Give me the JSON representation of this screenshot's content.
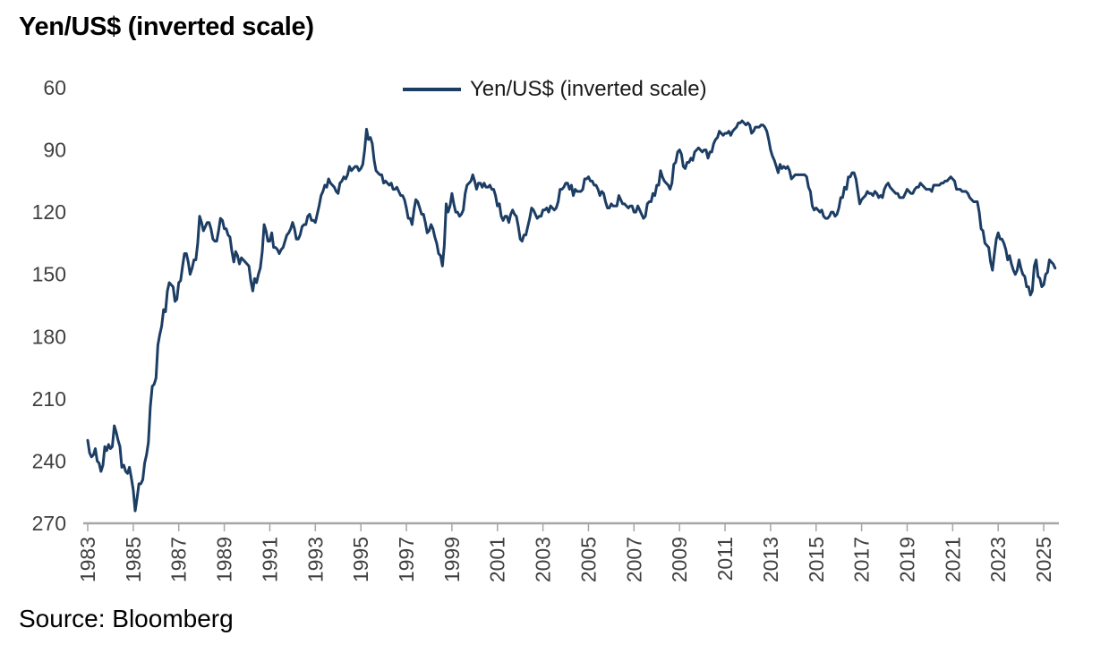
{
  "page": {
    "title": "Yen/US$ (inverted scale)"
  },
  "legend": {
    "label": "Yen/US$ (inverted scale)"
  },
  "footer": {
    "source": "Source: Bloomberg"
  },
  "chart_data": {
    "type": "line",
    "title": "Yen/US$ (inverted scale)",
    "xlabel": "",
    "ylabel": "",
    "grid": false,
    "legend_position": "top-center",
    "y_axis": {
      "inverted": true,
      "min": 60,
      "max": 270,
      "ticks": [
        60,
        90,
        120,
        150,
        180,
        210,
        240,
        270
      ]
    },
    "x_axis": {
      "unit": "year",
      "ticks": [
        1983,
        1985,
        1987,
        1989,
        1991,
        1993,
        1995,
        1997,
        1999,
        2001,
        2003,
        2005,
        2007,
        2009,
        2011,
        2013,
        2015,
        2017,
        2019,
        2021,
        2023,
        2025
      ]
    },
    "colors": {
      "line": "#1C3D64",
      "axis": "#A6A6A6",
      "tick_label": "#404040"
    },
    "series": [
      {
        "name": "Yen/US$ (inverted scale)",
        "x_start": 1983.0,
        "x_step_years": 0.08333,
        "frequency": "monthly",
        "values": [
          230,
          236,
          238,
          237,
          234,
          240,
          241,
          245,
          242,
          233,
          235,
          232,
          234,
          233,
          223,
          226,
          230,
          233,
          243,
          242,
          245,
          246,
          243,
          248,
          254,
          264,
          258,
          251,
          251,
          249,
          241,
          237,
          231,
          214,
          204,
          203,
          200,
          184,
          179,
          175,
          167,
          168,
          158,
          154,
          155,
          156,
          163,
          162,
          154,
          153,
          146,
          140,
          140,
          144,
          150,
          147,
          143,
          143,
          135,
          122,
          125,
          129,
          127,
          125,
          125,
          128,
          133,
          134,
          134,
          129,
          123,
          124,
          128,
          128,
          131,
          132,
          139,
          144,
          139,
          141,
          145,
          142,
          143,
          144,
          145,
          146,
          153,
          158,
          152,
          154,
          150,
          147,
          139,
          126,
          129,
          134,
          134,
          130,
          137,
          137,
          138,
          140,
          138,
          137,
          134,
          131,
          130,
          128,
          125,
          128,
          133,
          133,
          131,
          127,
          126,
          126,
          122,
          121,
          124,
          124,
          125,
          121,
          117,
          112,
          110,
          107,
          108,
          104,
          106,
          107,
          108,
          110,
          111,
          106,
          105,
          103,
          104,
          102,
          98,
          100,
          99,
          98,
          98,
          100,
          99,
          97,
          90,
          80,
          85,
          84,
          87,
          95,
          100,
          101,
          102,
          102,
          106,
          105,
          106,
          107,
          106,
          109,
          109,
          108,
          110,
          112,
          112,
          114,
          118,
          123,
          123,
          126,
          119,
          114,
          115,
          118,
          121,
          121,
          125,
          130,
          129,
          126,
          128,
          132,
          135,
          140,
          141,
          146,
          136,
          116,
          120,
          117,
          111,
          116,
          120,
          120,
          122,
          121,
          119,
          111,
          107,
          106,
          105,
          102,
          105,
          109,
          106,
          106,
          108,
          106,
          108,
          108,
          107,
          109,
          109,
          112,
          117,
          116,
          122,
          124,
          122,
          122,
          125,
          121,
          119,
          121,
          122,
          127,
          133,
          134,
          131,
          131,
          127,
          123,
          118,
          119,
          121,
          123,
          122,
          122,
          119,
          119,
          118,
          120,
          117,
          118,
          119,
          118,
          115,
          109,
          109,
          108,
          106,
          106,
          109,
          107,
          112,
          109,
          110,
          110,
          110,
          109,
          104,
          104,
          103,
          105,
          105,
          107,
          107,
          109,
          112,
          110,
          111,
          115,
          118,
          118,
          116,
          117,
          117,
          117,
          112,
          114,
          116,
          116,
          117,
          118,
          117,
          117,
          120,
          120,
          117,
          119,
          121,
          123,
          122,
          116,
          115,
          115,
          111,
          112,
          107,
          107,
          100,
          103,
          105,
          106,
          107,
          109,
          106,
          97,
          96,
          91,
          90,
          92,
          98,
          99,
          96,
          96,
          94,
          95,
          91,
          90,
          89,
          90,
          91,
          90,
          90,
          94,
          91,
          91,
          87,
          85,
          84,
          81,
          82,
          83,
          82,
          82,
          81,
          83,
          81,
          80,
          79,
          77,
          77,
          76,
          77,
          78,
          77,
          78,
          82,
          81,
          79,
          79,
          79,
          78,
          78,
          79,
          81,
          85,
          90,
          93,
          95,
          98,
          101,
          97,
          99,
          98,
          99,
          98,
          100,
          104,
          103,
          102,
          102,
          102,
          102,
          102,
          102,
          103,
          108,
          110,
          117,
          119,
          118,
          119,
          120,
          119,
          122,
          123,
          123,
          122,
          120,
          120,
          122,
          121,
          118,
          113,
          113,
          108,
          109,
          103,
          103,
          101,
          101,
          104,
          110,
          116,
          114,
          113,
          112,
          110,
          111,
          111,
          112,
          110,
          111,
          113,
          112,
          113,
          109,
          107,
          106,
          108,
          109,
          110,
          111,
          111,
          113,
          113,
          113,
          111,
          109,
          110,
          111,
          111,
          109,
          108,
          108,
          106,
          107,
          108,
          109,
          109,
          109,
          110,
          107,
          107,
          107,
          107,
          106,
          106,
          105,
          105,
          104,
          103,
          104,
          105,
          109,
          109,
          109,
          110,
          110,
          110,
          111,
          113,
          114,
          115,
          115,
          115,
          120,
          128,
          129,
          135,
          136,
          137,
          144,
          148,
          140,
          133,
          130,
          133,
          133,
          135,
          138,
          143,
          141,
          145,
          148,
          150,
          148,
          143,
          147,
          150,
          151,
          156,
          156,
          160,
          158,
          146,
          143,
          151,
          152,
          156,
          155,
          150,
          149,
          143,
          144,
          145,
          147
        ]
      }
    ]
  }
}
